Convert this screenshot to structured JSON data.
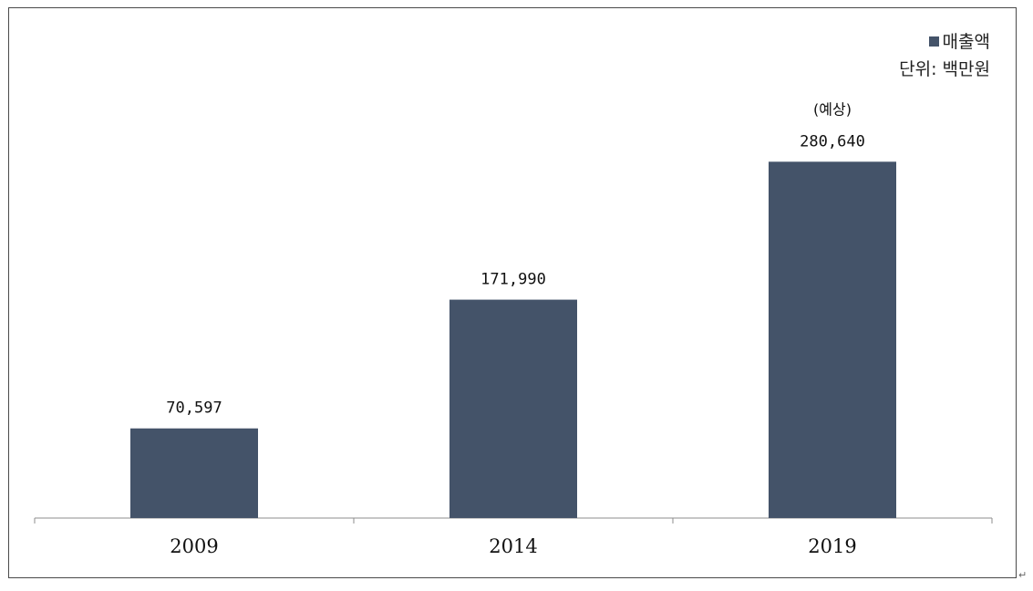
{
  "chart_data": {
    "type": "bar",
    "categories": [
      "2009",
      "2014",
      "2019"
    ],
    "series": [
      {
        "name": "매출액",
        "values": [
          70597,
          171990,
          280640
        ],
        "value_labels": [
          "70,597",
          "171,990",
          "280,640"
        ]
      }
    ],
    "annotations": [
      {
        "category": "2019",
        "text": "(예상)"
      }
    ],
    "unit_label": "단위: 백만원",
    "ylim": [
      0,
      380000
    ],
    "grid": false,
    "legend_position": "top-right",
    "bar_color": "#445369"
  },
  "page": {
    "return_mark": "↵"
  }
}
